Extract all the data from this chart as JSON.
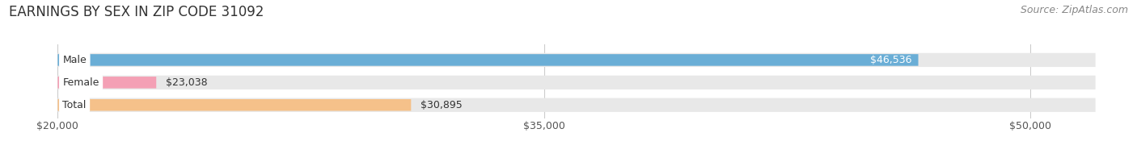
{
  "title": "EARNINGS BY SEX IN ZIP CODE 31092",
  "source": "Source: ZipAtlas.com",
  "categories": [
    "Male",
    "Female",
    "Total"
  ],
  "values": [
    46536,
    23038,
    30895
  ],
  "bar_colors": [
    "#6aaed6",
    "#f4a0b5",
    "#f5c18a"
  ],
  "value_labels": [
    "$46,536",
    "$23,038",
    "$30,895"
  ],
  "xlim_min": 20000,
  "xlim_max": 52000,
  "xticks": [
    20000,
    35000,
    50000
  ],
  "xtick_labels": [
    "$20,000",
    "$35,000",
    "$50,000"
  ],
  "background_color": "#ffffff",
  "bar_bg_color": "#e8e8e8",
  "title_fontsize": 12,
  "source_fontsize": 9,
  "tick_fontsize": 9,
  "value_fontsize": 9,
  "label_fontsize": 9
}
